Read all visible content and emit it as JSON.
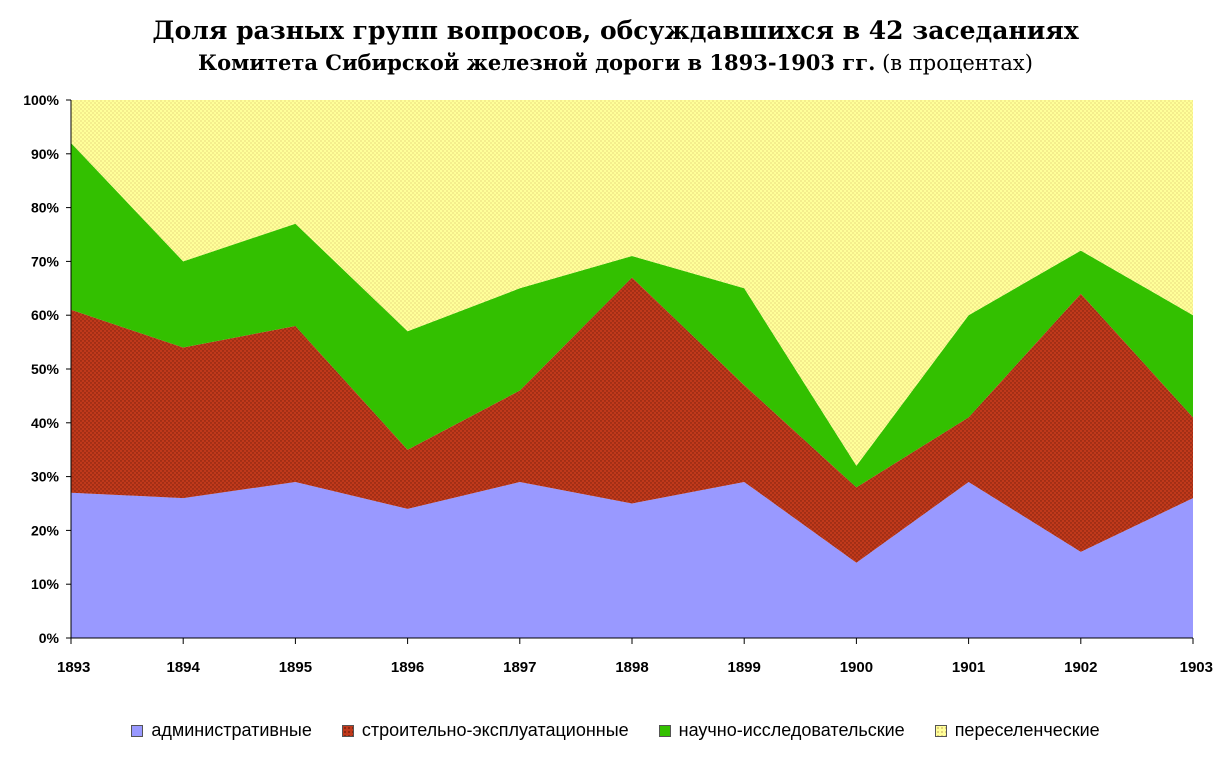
{
  "title": {
    "line1": "Доля разных групп вопросов, обсуждавшихся в 42 заседаниях",
    "line2_bold": "Комитета Сибирской железной дороги в 1893-1903 гг.",
    "line2_normal": " (в процентах)"
  },
  "chart_data": {
    "type": "area",
    "stacked": true,
    "x": [
      "1893",
      "1894",
      "1895",
      "1896",
      "1897",
      "1898",
      "1899",
      "1900",
      "1901",
      "1902",
      "1903"
    ],
    "ylim": [
      0,
      100
    ],
    "yticks": [
      "0%",
      "10%",
      "20%",
      "30%",
      "40%",
      "50%",
      "60%",
      "70%",
      "80%",
      "90%",
      "100%"
    ],
    "grid": false,
    "legend_position": "bottom",
    "series": [
      {
        "name": "административные",
        "color": "#9999ff",
        "pattern": "none",
        "values": [
          27,
          26,
          29,
          24,
          29,
          25,
          29,
          14,
          29,
          16,
          26
        ]
      },
      {
        "name": "строительно-эксплуатационные",
        "color": "#c0391b",
        "pattern": "dots",
        "values": [
          34,
          28,
          29,
          11,
          17,
          42,
          18,
          14,
          12,
          48,
          15
        ]
      },
      {
        "name": "научно-исследовательские",
        "color": "#33c000",
        "pattern": "none",
        "values": [
          31,
          16,
          19,
          22,
          19,
          4,
          18,
          4,
          19,
          8,
          19
        ]
      },
      {
        "name": "переселенческие",
        "color": "#ffff99",
        "pattern": "dots",
        "values": [
          8,
          30,
          23,
          43,
          35,
          29,
          35,
          68,
          40,
          28,
          40
        ]
      }
    ]
  }
}
